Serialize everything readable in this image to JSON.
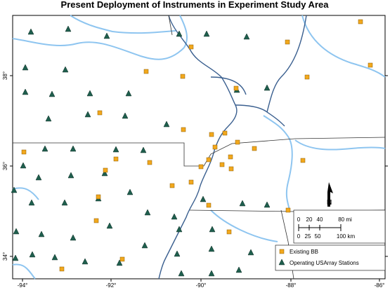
{
  "title": "Present Deployment of Instruments in Experiment Study Area",
  "x_labels": [
    "-94°",
    "-92°",
    "-90°",
    "-88°",
    "-86°"
  ],
  "y_labels": [
    "38°",
    "36°",
    "34°"
  ],
  "scale_miles": [
    "0",
    "20",
    "40",
    "80 mi"
  ],
  "scale_km": [
    "0",
    "25",
    "50",
    "100 km"
  ],
  "north_label": "N",
  "legend": [
    "Existing BB",
    "Operating USArray Stations"
  ]
}
